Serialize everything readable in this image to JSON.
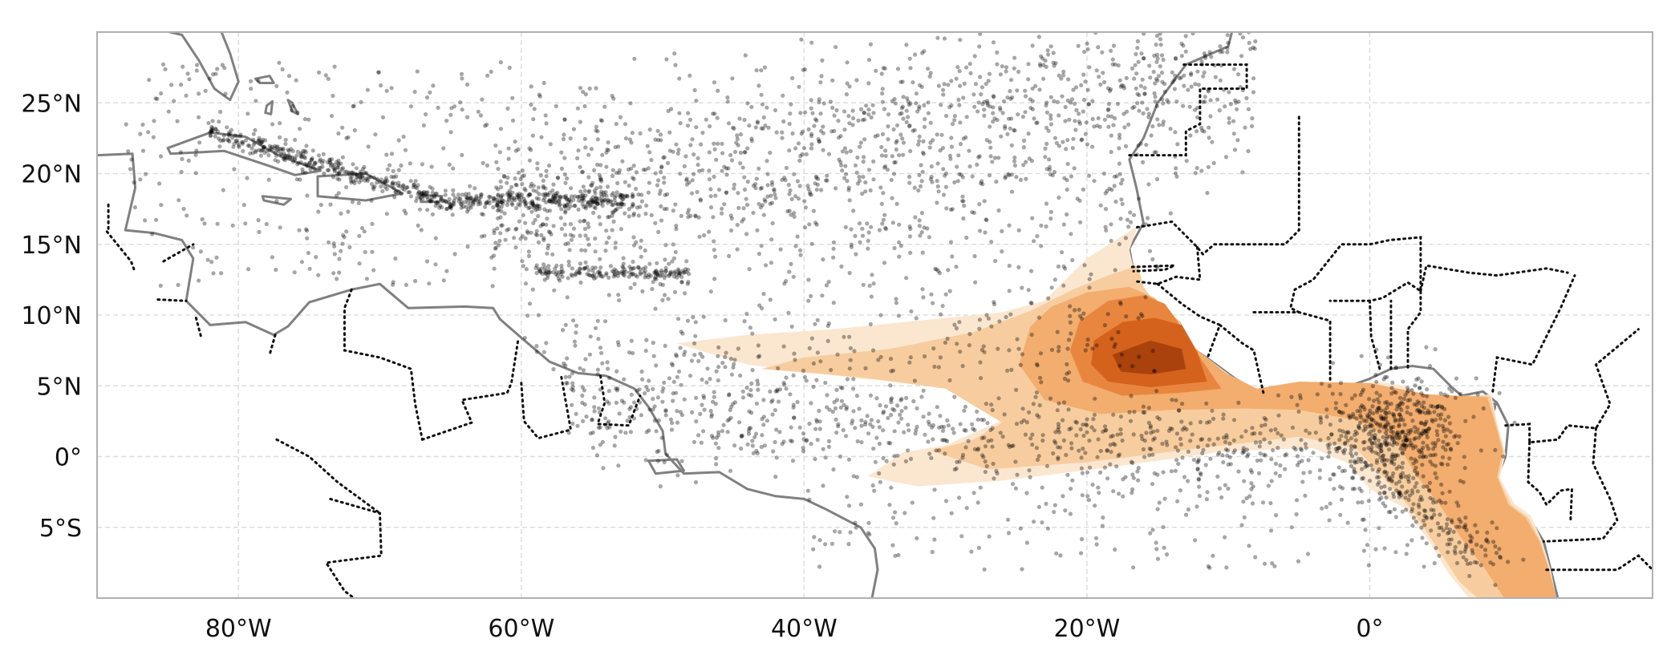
{
  "map": {
    "projection": "PlateCarree",
    "extent": {
      "lon_min": -90,
      "lon_max": 20,
      "lat_min": -10,
      "lat_max": 30
    },
    "gridlines": true,
    "xticks": [
      {
        "lon": -80,
        "label": "80°W"
      },
      {
        "lon": -60,
        "label": "60°W"
      },
      {
        "lon": -40,
        "label": "40°W"
      },
      {
        "lon": -20,
        "label": "20°W"
      },
      {
        "lon": 0,
        "label": "0°"
      }
    ],
    "yticks": [
      {
        "lat": 25,
        "label": "25°N"
      },
      {
        "lat": 20,
        "label": "20°N"
      },
      {
        "lat": 15,
        "label": "15°N"
      },
      {
        "lat": 10,
        "label": "10°N"
      },
      {
        "lat": 5,
        "label": "5°N"
      },
      {
        "lat": 0,
        "label": "0°"
      },
      {
        "lat": -5,
        "label": "5°S"
      }
    ],
    "coastline_color": "#808080",
    "border_style": "dotted",
    "scatter_color": "#000000",
    "density_colormap": [
      "#fbe6cf",
      "#f7cd9f",
      "#f2ad6f",
      "#e8863f",
      "#d4621d",
      "#a9420c"
    ],
    "layers": [
      "coastlines",
      "country-borders",
      "density-contours",
      "scatter-points"
    ]
  }
}
